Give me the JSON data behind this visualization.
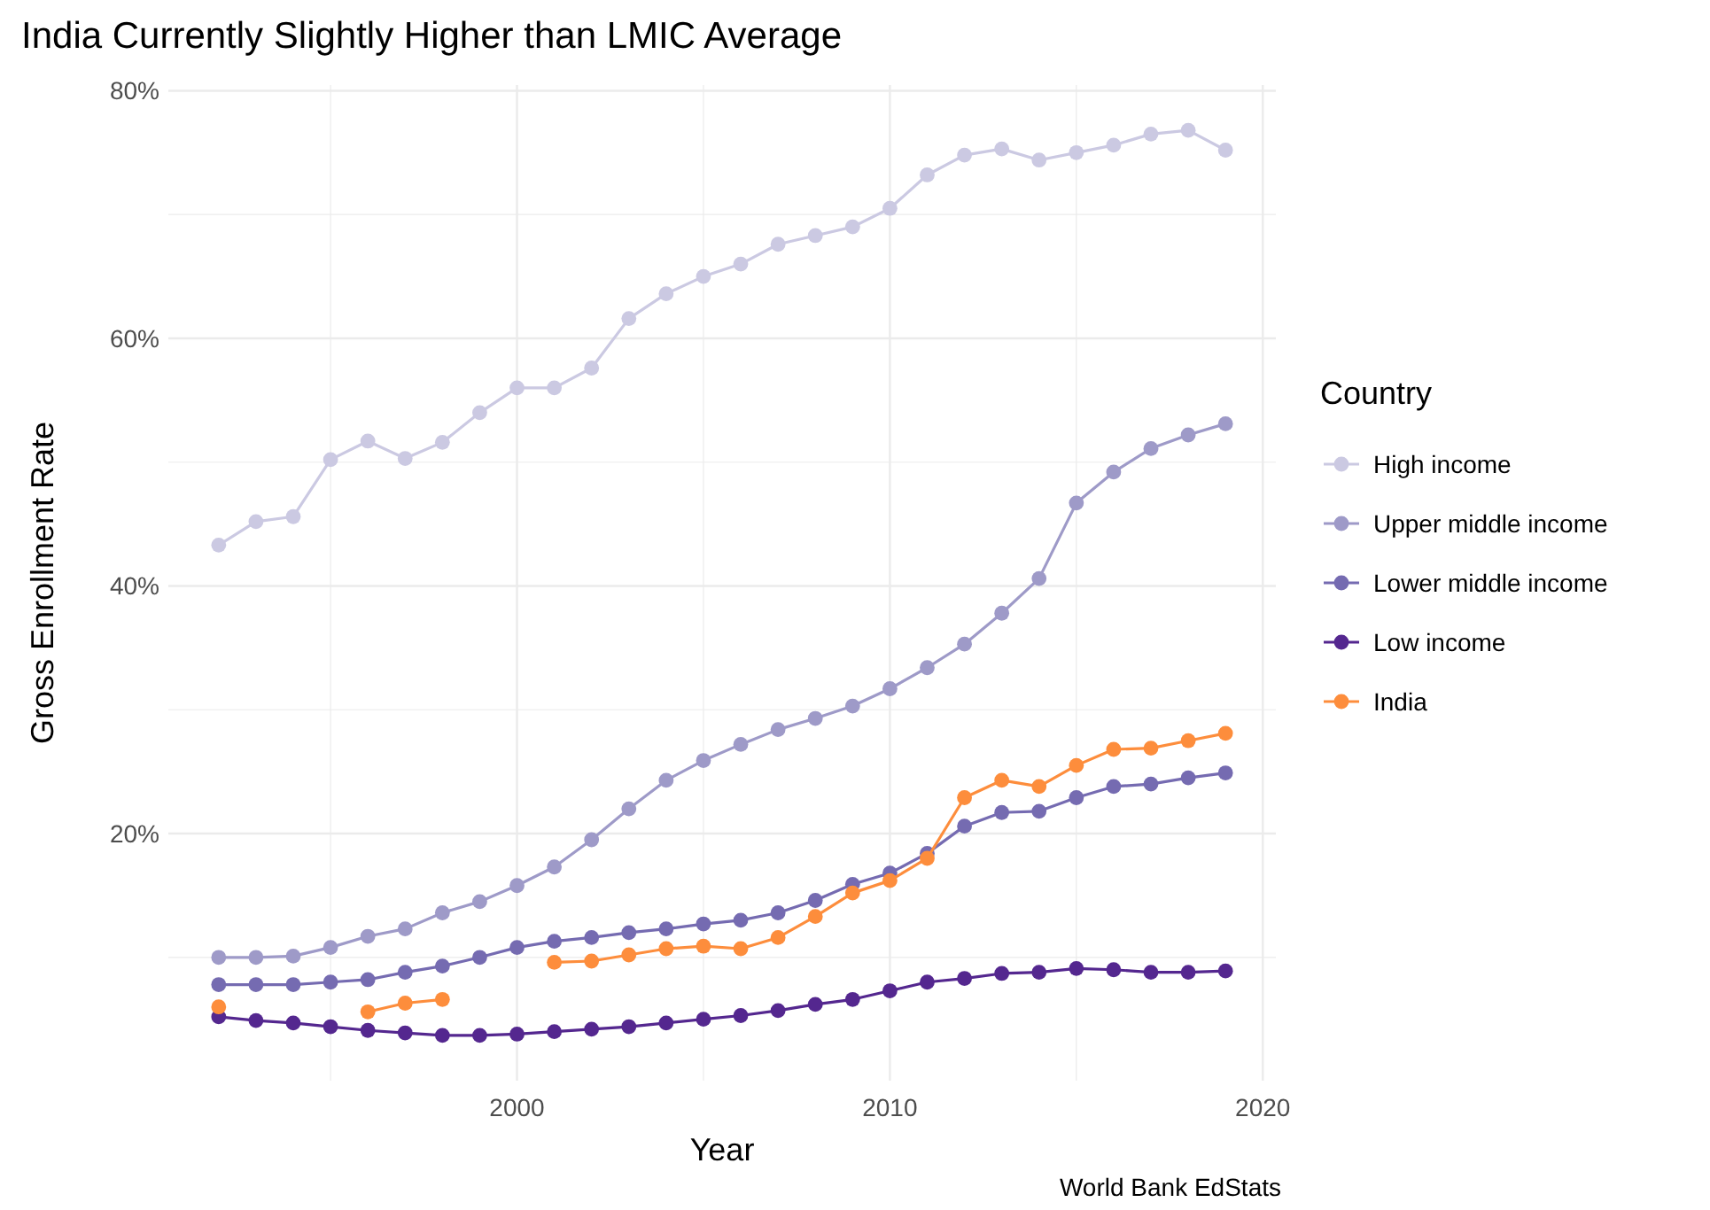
{
  "chart_data": {
    "type": "line",
    "title": "India Currently Slightly Higher than LMIC Average",
    "xlabel": "Year",
    "ylabel": "Gross Enrollment Rate",
    "legend_title": "Country",
    "annotations": [
      "World Bank EdStats"
    ],
    "x": [
      1992,
      1993,
      1994,
      1995,
      1996,
      1997,
      1998,
      1999,
      2000,
      2001,
      2002,
      2003,
      2004,
      2005,
      2006,
      2007,
      2008,
      2009,
      2010,
      2011,
      2012,
      2013,
      2014,
      2015,
      2016,
      2017,
      2018,
      2019
    ],
    "series": [
      {
        "name": "High income",
        "color": "#cbc9e2",
        "values": [
          43.3,
          45.2,
          45.6,
          50.2,
          51.7,
          50.3,
          51.6,
          54.0,
          56.0,
          56.0,
          57.6,
          61.6,
          63.6,
          65.0,
          66.0,
          67.6,
          68.3,
          69.0,
          70.5,
          73.2,
          74.8,
          75.3,
          74.4,
          75.0,
          75.6,
          76.5,
          76.8,
          75.2
        ]
      },
      {
        "name": "Upper middle income",
        "color": "#9e9ac8",
        "values": [
          10.0,
          10.0,
          10.1,
          10.8,
          11.7,
          12.3,
          13.6,
          14.5,
          15.8,
          17.3,
          19.5,
          22.0,
          24.3,
          25.9,
          27.2,
          28.4,
          29.3,
          30.3,
          31.7,
          33.4,
          35.3,
          37.8,
          40.6,
          46.7,
          49.2,
          51.1,
          52.2,
          53.1
        ]
      },
      {
        "name": "Lower middle income",
        "color": "#756bb1",
        "values": [
          7.8,
          7.8,
          7.8,
          8.0,
          8.2,
          8.8,
          9.3,
          10.0,
          10.8,
          11.3,
          11.6,
          12.0,
          12.3,
          12.7,
          13.0,
          13.6,
          14.6,
          15.9,
          16.8,
          18.4,
          20.6,
          21.7,
          21.8,
          22.9,
          23.8,
          24.0,
          24.5,
          24.9
        ]
      },
      {
        "name": "Low income",
        "color": "#54278f",
        "values": [
          5.2,
          4.9,
          4.7,
          4.4,
          4.1,
          3.9,
          3.7,
          3.7,
          3.8,
          4.0,
          4.2,
          4.4,
          4.7,
          5.0,
          5.3,
          5.7,
          6.2,
          6.6,
          7.3,
          8.0,
          8.3,
          8.7,
          8.8,
          9.1,
          9.0,
          8.8,
          8.8,
          8.9
        ]
      },
      {
        "name": "India",
        "color": "#fd8d3c",
        "values": [
          6.0,
          null,
          null,
          null,
          5.6,
          6.3,
          6.6,
          null,
          null,
          9.6,
          9.7,
          10.2,
          10.7,
          10.9,
          10.7,
          11.6,
          13.3,
          15.2,
          16.2,
          18.0,
          22.9,
          24.3,
          23.8,
          25.5,
          26.8,
          26.9,
          27.5,
          28.1
        ]
      }
    ],
    "xlim": [
      1990.65,
      2020.35
    ],
    "xticks": [
      {
        "value": 1995,
        "label": null
      },
      2000,
      {
        "value": 2005,
        "label": null
      },
      2010,
      {
        "value": 2015,
        "label": null
      },
      2020
    ],
    "ylim": [
      0.04,
      80.46
    ],
    "yticks": [
      {
        "value": 10,
        "label": null
      },
      {
        "value": 20,
        "label": "20%"
      },
      {
        "value": 30,
        "label": null
      },
      {
        "value": 40,
        "label": "40%"
      },
      {
        "value": 50,
        "label": null
      },
      {
        "value": 60,
        "label": "60%"
      },
      {
        "value": 70,
        "label": null
      },
      {
        "value": 80,
        "label": "80%"
      }
    ],
    "grid": true,
    "legend": "right",
    "marker": "circle",
    "line_style": "solid"
  }
}
